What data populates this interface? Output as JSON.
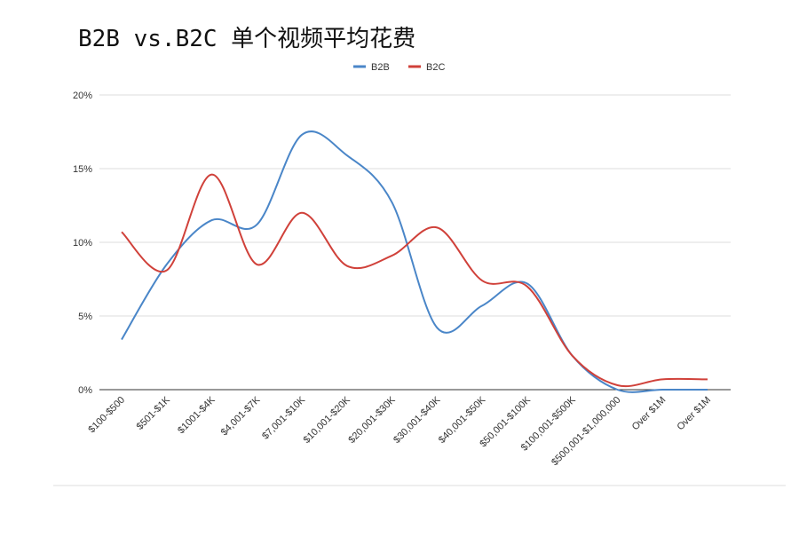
{
  "chart_data": {
    "type": "line",
    "title": "B2B vs.B2C 单个视频平均花费",
    "categories": [
      "$100-$500",
      "$501-$1K",
      "$1001-$4K",
      "$4,001-$7K",
      "$7,001-$10K",
      "$10,001-$20K",
      "$20,001-$30K",
      "$30,001-$40K",
      "$40,001-$50K",
      "$50,001-$100K",
      "$100,001-$500K",
      "$500,001-$1,000,000",
      "Over $1M",
      "Over $1M"
    ],
    "series": [
      {
        "name": "B2B",
        "color": "#4a86c8",
        "values": [
          3.4,
          8.5,
          11.5,
          11.2,
          17.3,
          15.9,
          12.7,
          4.2,
          5.7,
          7.2,
          2.3,
          0,
          0,
          0
        ]
      },
      {
        "name": "B2C",
        "color": "#d0413a",
        "values": [
          10.7,
          8.1,
          14.6,
          8.5,
          12.0,
          8.4,
          9.1,
          11.0,
          7.4,
          7.0,
          2.3,
          0.3,
          0.7,
          0.7
        ]
      }
    ],
    "ylim": [
      0,
      20
    ],
    "yticks": [
      {
        "value": 0,
        "label": "0%"
      },
      {
        "value": 5,
        "label": "5%"
      },
      {
        "value": 10,
        "label": "10%"
      },
      {
        "value": 15,
        "label": "15%"
      },
      {
        "value": 20,
        "label": "20%"
      }
    ],
    "grid": true,
    "legend": "top"
  }
}
